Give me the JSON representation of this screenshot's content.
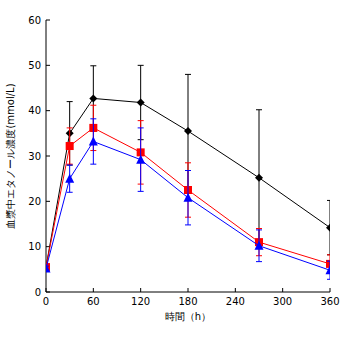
{
  "chart_data": {
    "type": "line",
    "x_label": "時間（h）",
    "y_label": "血漿中エタノール濃度(mmol/L)",
    "x": [
      0,
      30,
      60,
      120,
      180,
      270,
      360
    ],
    "series": [
      {
        "color": "#000000",
        "marker": "diamond",
        "line_style": "solid",
        "values": [
          5.5,
          35,
          42.7,
          41.8,
          35.5,
          25.2,
          14.2
        ],
        "errors": [
          0.5,
          7,
          7.2,
          8.2,
          12.5,
          15,
          6
        ]
      },
      {
        "color": "#ff0000",
        "marker": "square",
        "line_style": "solid",
        "values": [
          5.5,
          32.2,
          36.2,
          30.8,
          22.5,
          11,
          6.2
        ],
        "errors": [
          0.5,
          4,
          5,
          7,
          6,
          3,
          2
        ]
      },
      {
        "color": "#0000ff",
        "marker": "triangle",
        "line_style": "solid",
        "values": [
          5.2,
          25,
          33.2,
          29.2,
          20.8,
          10.2,
          4.8
        ],
        "errors": [
          0.5,
          3,
          5,
          7,
          6,
          3.5,
          2
        ]
      }
    ],
    "xlim": [
      0,
      360
    ],
    "xticks": [
      0,
      60,
      120,
      180,
      240,
      300,
      360
    ],
    "ylim": [
      0,
      60
    ],
    "yticks": [
      0,
      10,
      20,
      30,
      40,
      50,
      60
    ],
    "grid": false
  }
}
